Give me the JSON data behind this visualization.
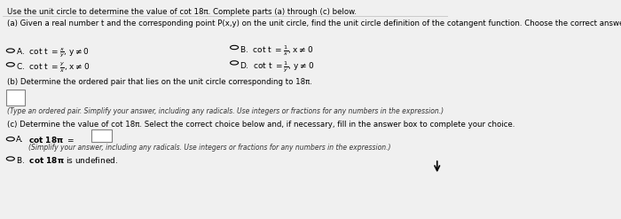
{
  "bg_color": "#f0f0f0",
  "header_text": "Use the unit circle to determine the value of cot 18π. Complete parts (a) through (c) below.",
  "part_a_label": "(a) Given a real number t and the corresponding point P(x,y) on the unit circle, find the unit circle definition of the cotangent function. Choose the correct answer below.",
  "part_b_label": "(b) Determine the ordered pair that lies on the unit circle corresponding to 18π.",
  "part_b_note": "(Type an ordered pair. Simplify your answer, including any radicals. Use integers or fractions for any numbers in the expression.)",
  "part_c_label": "(c) Determine the value of cot 18π. Select the correct choice below and, if necessary, fill in the answer box to complete your choice.",
  "part_c_optA_note": "(Simplify your answer, including any radicals. Use integers or fractions for any numbers in the expression.)",
  "part_c_optB": "cot 18π is undefined."
}
